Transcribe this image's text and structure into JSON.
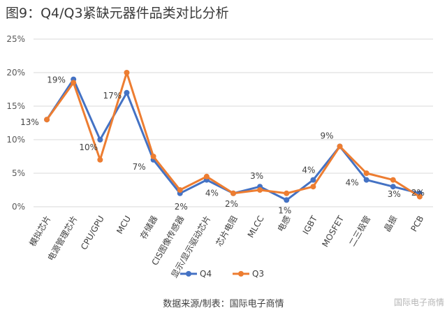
{
  "title": "图9：Q4/Q3紧缺元器件品类对比分析",
  "source_note": "数据来源/制表：国际电子商情",
  "watermark": "国际电子商情",
  "colors": {
    "q4": "#4472c4",
    "q3": "#ed7d31",
    "grid": "#d9d9d9"
  },
  "chart_data": {
    "type": "line",
    "categories": [
      "模拟芯片",
      "电源管理芯片",
      "CPU/GPU",
      "MCU",
      "存储器",
      "CIS图像传感器",
      "显示/显示驱动芯片",
      "芯片电阻",
      "MLCC",
      "电感",
      "IGBT",
      "MOSFET",
      "二三极管",
      "晶振",
      "PCB"
    ],
    "series": [
      {
        "name": "Q4",
        "values": [
          13,
          19,
          10,
          17,
          7,
          2,
          4,
          2,
          3,
          1,
          4,
          9,
          4,
          3,
          2
        ]
      },
      {
        "name": "Q3",
        "values": [
          13,
          18.5,
          7,
          20,
          7.5,
          2.5,
          4.5,
          2,
          2.5,
          2,
          3,
          9,
          5,
          4,
          1.5
        ]
      }
    ],
    "data_labels": [
      "13%",
      "19%",
      "10%",
      "17%",
      "7%",
      "2%",
      "4%",
      "2%",
      "3%",
      "1%",
      "4%",
      "9%",
      "4%",
      "3%",
      "2%"
    ],
    "y_ticks": [
      "0%",
      "5%",
      "10%",
      "15%",
      "20%",
      "25%"
    ],
    "ylim": [
      0,
      25
    ],
    "grid": true,
    "legend_position": "bottom"
  }
}
